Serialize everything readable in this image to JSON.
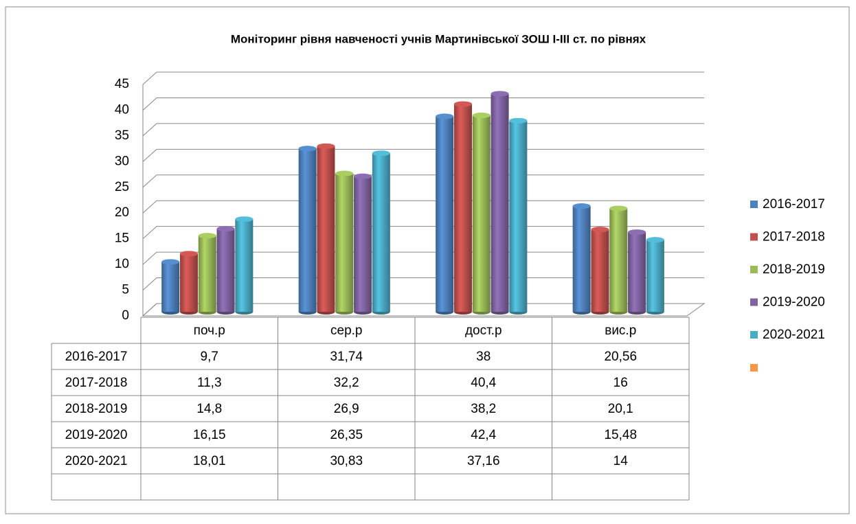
{
  "chart_data": {
    "type": "bar3d",
    "title": "Моніторинг рівня навченості учнів Мартинівської ЗОШ I-III ст. по рівнях",
    "categories": [
      "поч.р",
      "сер.р",
      "дост.р",
      "вис.р"
    ],
    "series": [
      {
        "name": "2016-2017",
        "color": "#4f81bd",
        "values": [
          9.7,
          31.74,
          38,
          20.56
        ],
        "value_labels": [
          "9,7",
          "31,74",
          "38",
          "20,56"
        ]
      },
      {
        "name": "2017-2018",
        "color": "#c0504d",
        "values": [
          11.3,
          32.2,
          40.4,
          16
        ],
        "value_labels": [
          "11,3",
          "32,2",
          "40,4",
          "16"
        ]
      },
      {
        "name": "2018-2019",
        "color": "#9bbb59",
        "values": [
          14.8,
          26.9,
          38.2,
          20.1
        ],
        "value_labels": [
          "14,8",
          "26,9",
          "38,2",
          "20,1"
        ]
      },
      {
        "name": "2019-2020",
        "color": "#8064a2",
        "values": [
          16.15,
          26.35,
          42.4,
          15.48
        ],
        "value_labels": [
          "16,15",
          "26,35",
          "42,4",
          "15,48"
        ]
      },
      {
        "name": "2020-2021",
        "color": "#4bacc6",
        "values": [
          18.01,
          30.83,
          37.16,
          14
        ],
        "value_labels": [
          "18,01",
          "30,83",
          "37,16",
          "14"
        ]
      }
    ],
    "ylim": [
      0,
      45
    ],
    "yticks": [
      0,
      5,
      10,
      15,
      20,
      25,
      30,
      35,
      40,
      45
    ],
    "grid": true,
    "legend": "right"
  }
}
